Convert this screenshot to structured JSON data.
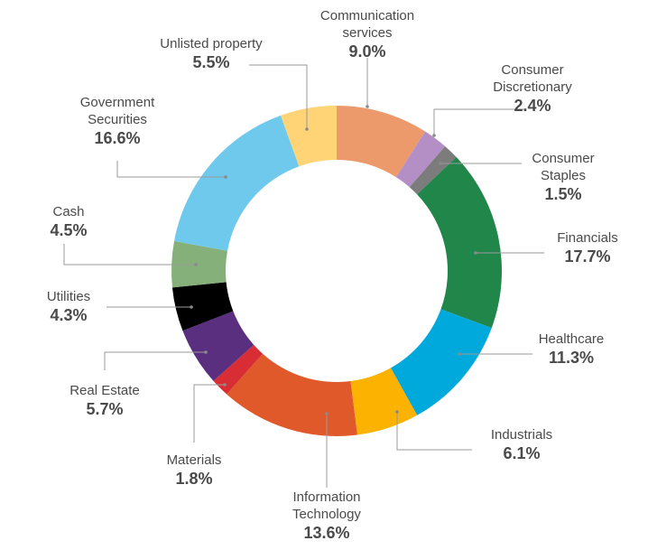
{
  "chart_data": {
    "type": "pie",
    "donut": true,
    "title": "",
    "value_unit": "%",
    "slices": [
      {
        "label": [
          "Communication",
          "services"
        ],
        "value": 9.0,
        "display": "9.0%",
        "color": "#ec9a6c"
      },
      {
        "label": [
          "Consumer",
          "Discretionary"
        ],
        "value": 2.4,
        "display": "2.4%",
        "color": "#b38fc6"
      },
      {
        "label": [
          "Consumer",
          "Staples"
        ],
        "value": 1.5,
        "display": "1.5%",
        "color": "#7c7c7c"
      },
      {
        "label": [
          "Financials"
        ],
        "value": 17.7,
        "display": "17.7%",
        "color": "#20864a"
      },
      {
        "label": [
          "Healthcare"
        ],
        "value": 11.3,
        "display": "11.3%",
        "color": "#00a9dc"
      },
      {
        "label": [
          "Industrials"
        ],
        "value": 6.1,
        "display": "6.1%",
        "color": "#fbb201"
      },
      {
        "label": [
          "Information",
          "Technology"
        ],
        "value": 13.6,
        "display": "13.6%",
        "color": "#e0592b"
      },
      {
        "label": [
          "Materials"
        ],
        "value": 1.8,
        "display": "1.8%",
        "color": "#d92d35"
      },
      {
        "label": [
          "Real Estate"
        ],
        "value": 5.7,
        "display": "5.7%",
        "color": "#5b2f7f"
      },
      {
        "label": [
          "Utilities"
        ],
        "value": 4.3,
        "display": "4.3%",
        "color": "#000000"
      },
      {
        "label": [
          "Cash"
        ],
        "value": 4.5,
        "display": "4.5%",
        "color": "#86b07a"
      },
      {
        "label": [
          "Government",
          "Securities"
        ],
        "value": 16.6,
        "display": "16.6%",
        "color": "#6ec9ec"
      },
      {
        "label": [
          "Unlisted property"
        ],
        "value": 5.5,
        "display": "5.5%",
        "color": "#fed477"
      }
    ]
  }
}
